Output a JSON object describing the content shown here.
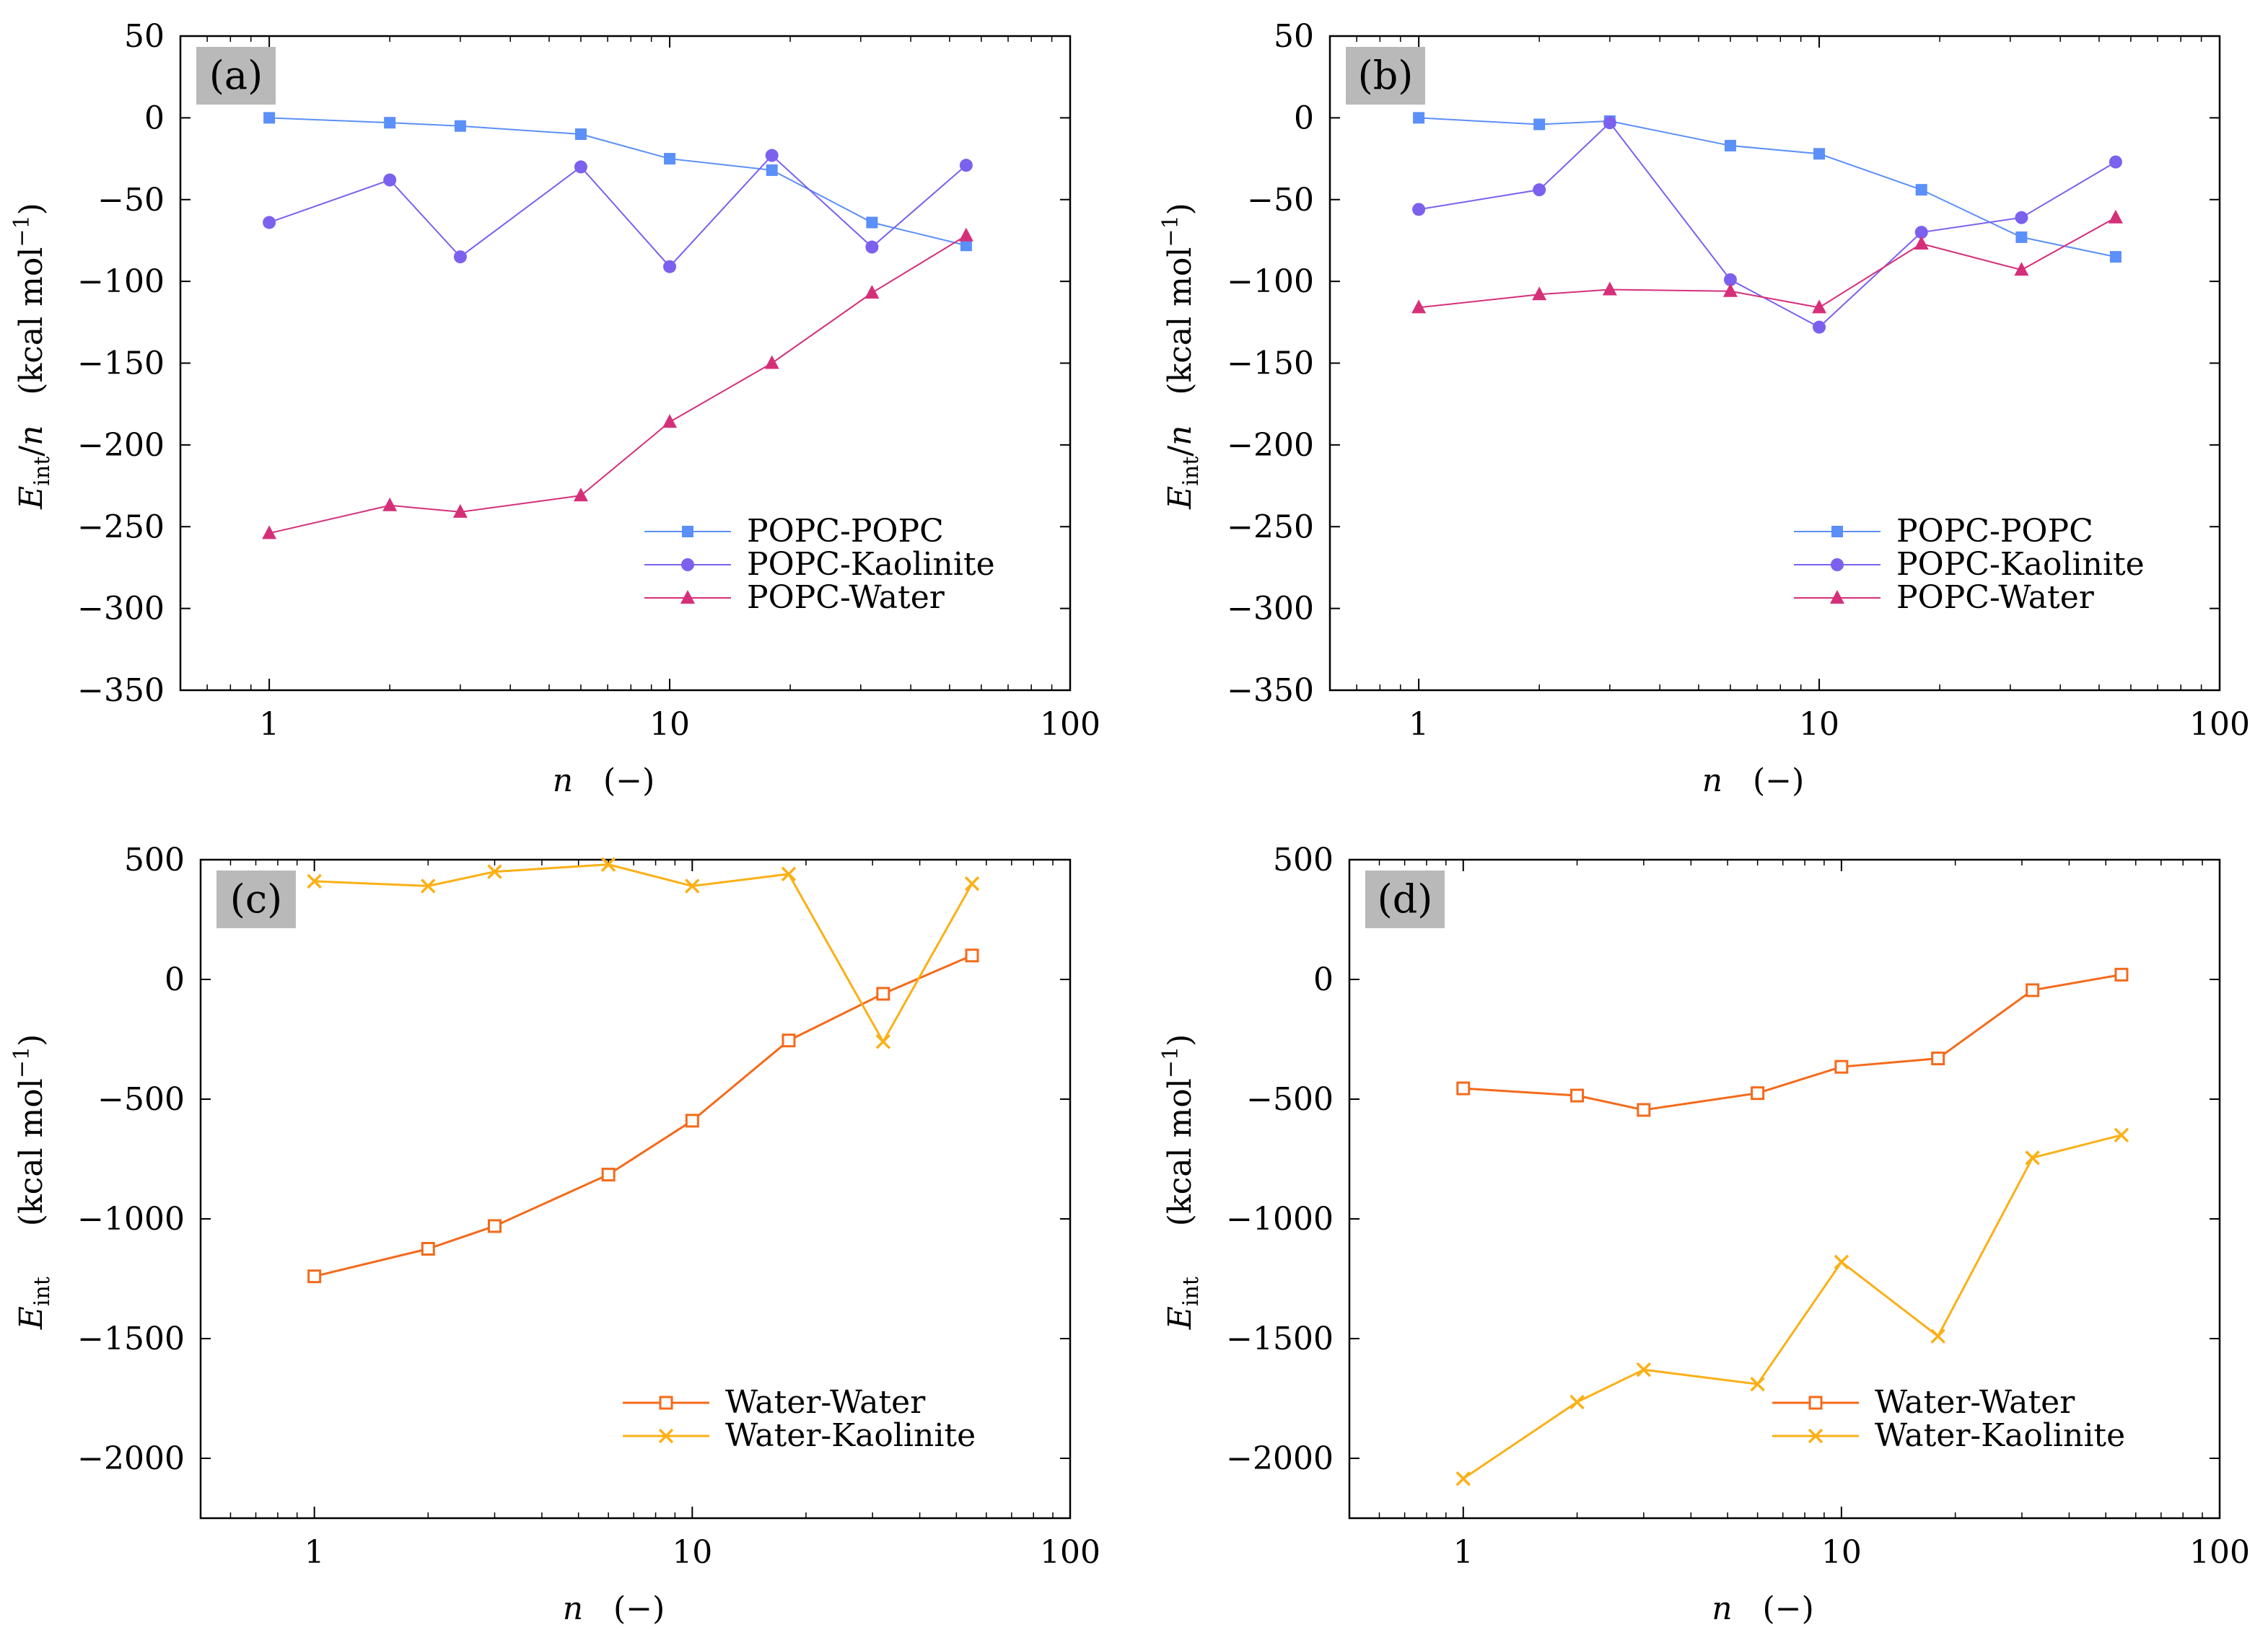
{
  "chart_data": [
    {
      "type": "line",
      "panel_label": "(a)",
      "xscale": "log",
      "xlim": [
        0.6,
        100
      ],
      "ylim": [
        -350,
        50
      ],
      "xticks": [
        1,
        10,
        100
      ],
      "xtick_labels": [
        "1",
        "10",
        "100"
      ],
      "yticks": [
        50,
        0,
        -50,
        -100,
        -150,
        -200,
        -250,
        -300,
        -350
      ],
      "ytick_labels": [
        "50",
        "0",
        "−50",
        "−100",
        "−150",
        "−200",
        "−250",
        "−300",
        "−350"
      ],
      "xlabel": "n   (−)",
      "ylabel": "Eint/n   (kcal mol−1)",
      "legend_position": "bottom-right",
      "series": [
        {
          "name": "POPC-POPC",
          "color": "#5b8ff9",
          "marker": "square",
          "x": [
            1,
            2,
            3,
            6,
            10,
            18,
            32,
            55
          ],
          "y": [
            0,
            -3,
            -5,
            -10,
            -25,
            -32,
            -64,
            -78
          ]
        },
        {
          "name": "POPC-Kaolinite",
          "color": "#7b61ee",
          "marker": "circle",
          "x": [
            1,
            2,
            3,
            6,
            10,
            18,
            32,
            55
          ],
          "y": [
            -64,
            -38,
            -85,
            -30,
            -91,
            -23,
            -79,
            -29
          ]
        },
        {
          "name": "POPC-Water",
          "color": "#d62f7a",
          "marker": "triangle",
          "x": [
            1,
            2,
            3,
            6,
            10,
            18,
            32,
            55
          ],
          "y": [
            -254,
            -237,
            -241,
            -231,
            -186,
            -150,
            -107,
            -72
          ]
        }
      ]
    },
    {
      "type": "line",
      "panel_label": "(b)",
      "xscale": "log",
      "xlim": [
        0.6,
        100
      ],
      "ylim": [
        -350,
        50
      ],
      "xticks": [
        1,
        10,
        100
      ],
      "xtick_labels": [
        "1",
        "10",
        "100"
      ],
      "yticks": [
        50,
        0,
        -50,
        -100,
        -150,
        -200,
        -250,
        -300,
        -350
      ],
      "ytick_labels": [
        "50",
        "0",
        "−50",
        "−100",
        "−150",
        "−200",
        "−250",
        "−300",
        "−350"
      ],
      "xlabel": "n   (−)",
      "ylabel": "Eint/n   (kcal mol−1)",
      "legend_position": "bottom-right",
      "series": [
        {
          "name": "POPC-POPC",
          "color": "#5b8ff9",
          "marker": "square",
          "x": [
            1,
            2,
            3,
            6,
            10,
            18,
            32,
            55
          ],
          "y": [
            0,
            -4,
            -2,
            -17,
            -22,
            -44,
            -73,
            -85
          ]
        },
        {
          "name": "POPC-Kaolinite",
          "color": "#7b61ee",
          "marker": "circle",
          "x": [
            1,
            2,
            3,
            6,
            10,
            18,
            32,
            55
          ],
          "y": [
            -56,
            -44,
            -3,
            -99,
            -128,
            -70,
            -61,
            -27
          ]
        },
        {
          "name": "POPC-Water",
          "color": "#d62f7a",
          "marker": "triangle",
          "x": [
            1,
            2,
            3,
            6,
            10,
            18,
            32,
            55
          ],
          "y": [
            -116,
            -108,
            -105,
            -106,
            -116,
            -77,
            -93,
            -61
          ]
        }
      ]
    },
    {
      "type": "line",
      "panel_label": "(c)",
      "xscale": "log",
      "xlim": [
        0.5,
        100
      ],
      "ylim": [
        -2250,
        500
      ],
      "xticks": [
        1,
        10,
        100
      ],
      "xtick_labels": [
        "1",
        "10",
        "100"
      ],
      "yticks": [
        500,
        0,
        -500,
        -1000,
        -1500,
        -2000
      ],
      "ytick_labels": [
        "500",
        "0",
        "−500",
        "−1000",
        "−1500",
        "−2000"
      ],
      "xlabel": "n   (−)",
      "ylabel": "Eint   (kcal mol−1)",
      "legend_position": "bottom-right",
      "series": [
        {
          "name": "Water-Water",
          "color": "#f46a1b",
          "marker": "open-square",
          "x": [
            1,
            2,
            3,
            6,
            10,
            18,
            32,
            55
          ],
          "y": [
            -1240,
            -1125,
            -1030,
            -815,
            -590,
            -255,
            -60,
            100
          ]
        },
        {
          "name": "Water-Kaolinite",
          "color": "#fbb016",
          "marker": "cross",
          "x": [
            1,
            2,
            3,
            6,
            10,
            18,
            32,
            55
          ],
          "y": [
            410,
            390,
            450,
            480,
            390,
            440,
            -260,
            400
          ]
        }
      ]
    },
    {
      "type": "line",
      "panel_label": "(d)",
      "xscale": "log",
      "xlim": [
        0.5,
        100
      ],
      "ylim": [
        -2250,
        500
      ],
      "xticks": [
        1,
        10,
        100
      ],
      "xtick_labels": [
        "1",
        "10",
        "100"
      ],
      "yticks": [
        500,
        0,
        -500,
        -1000,
        -1500,
        -2000
      ],
      "ytick_labels": [
        "500",
        "0",
        "−500",
        "−1000",
        "−1500",
        "−2000"
      ],
      "xlabel": "n   (−)",
      "ylabel": "Eint   (kcal mol−1)",
      "legend_position": "bottom-right",
      "series": [
        {
          "name": "Water-Water",
          "color": "#f46a1b",
          "marker": "open-square",
          "x": [
            1,
            2,
            3,
            6,
            10,
            18,
            32,
            55
          ],
          "y": [
            -455,
            -485,
            -545,
            -475,
            -365,
            -330,
            -45,
            20
          ]
        },
        {
          "name": "Water-Kaolinite",
          "color": "#fbb016",
          "marker": "cross",
          "x": [
            1,
            2,
            3,
            6,
            10,
            18,
            32,
            55
          ],
          "y": [
            -2085,
            -1765,
            -1630,
            -1690,
            -1180,
            -1490,
            -745,
            -650
          ]
        }
      ]
    }
  ]
}
